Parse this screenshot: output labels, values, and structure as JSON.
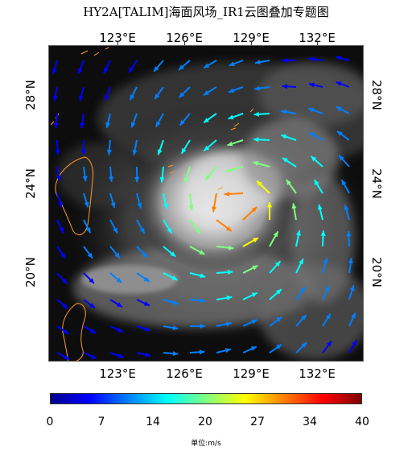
{
  "title": "HY2A[TALIM]海面风场_IR1云图叠加专题图",
  "lon_labels": [
    "123°E",
    "126°E",
    "129°E",
    "132°E"
  ],
  "lat_labels": [
    "28°N",
    "24°N",
    "20°N"
  ],
  "colorbar": {
    "ticks": [
      "0",
      "7",
      "14",
      "20",
      "27",
      "34",
      "40"
    ],
    "unit_label": "单位:m/s",
    "range": [
      0,
      40
    ],
    "colors": [
      "#00008f",
      "#0000ff",
      "#0080ff",
      "#00ffff",
      "#80ff80",
      "#ffff00",
      "#ff8000",
      "#ff0000",
      "#800000"
    ]
  },
  "map": {
    "lon_range": [
      120.5,
      134.5
    ],
    "lat_range": [
      17.5,
      29.5
    ],
    "typhoon_center": {
      "lon": 127.8,
      "lat": 22.8
    },
    "background": "#0b0b0b",
    "coast_color": "#ff9a2a"
  }
}
